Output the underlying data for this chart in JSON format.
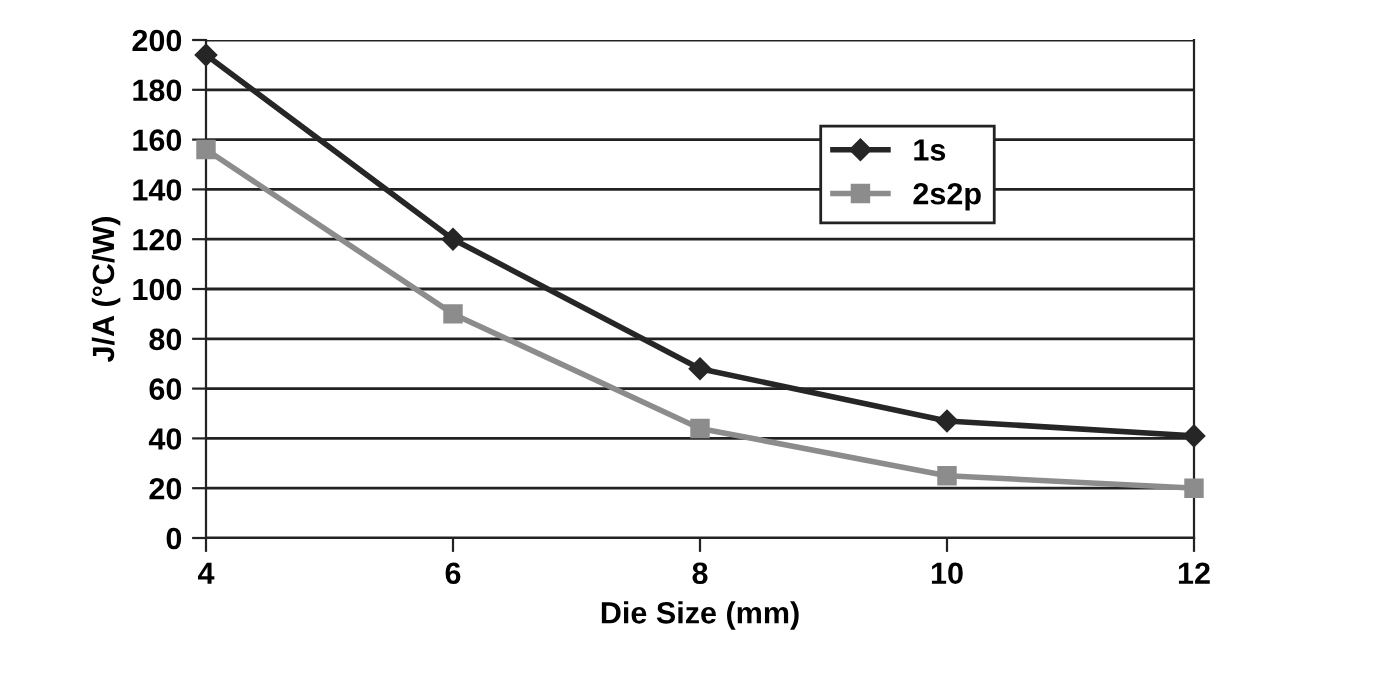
{
  "chart_data": {
    "type": "line",
    "xlabel": "Die Size (mm)",
    "ylabel": "J/A (°C/W)",
    "x": [
      4,
      6,
      8,
      10,
      12
    ],
    "series": [
      {
        "name": "1s",
        "color": "#262626",
        "values": [
          194,
          120,
          68,
          47,
          41
        ],
        "marker": "diamond"
      },
      {
        "name": "2s2p",
        "color": "#8c8c8c",
        "values": [
          156,
          90,
          44,
          25,
          20
        ],
        "marker": "square"
      }
    ],
    "xlim": [
      4,
      12
    ],
    "xticks": [
      4,
      6,
      8,
      10,
      12
    ],
    "ylim": [
      0,
      200
    ],
    "yticks": [
      0,
      20,
      40,
      60,
      80,
      100,
      120,
      140,
      160,
      180,
      200
    ],
    "grid": "y",
    "legend": "right",
    "line_style": "solid"
  }
}
